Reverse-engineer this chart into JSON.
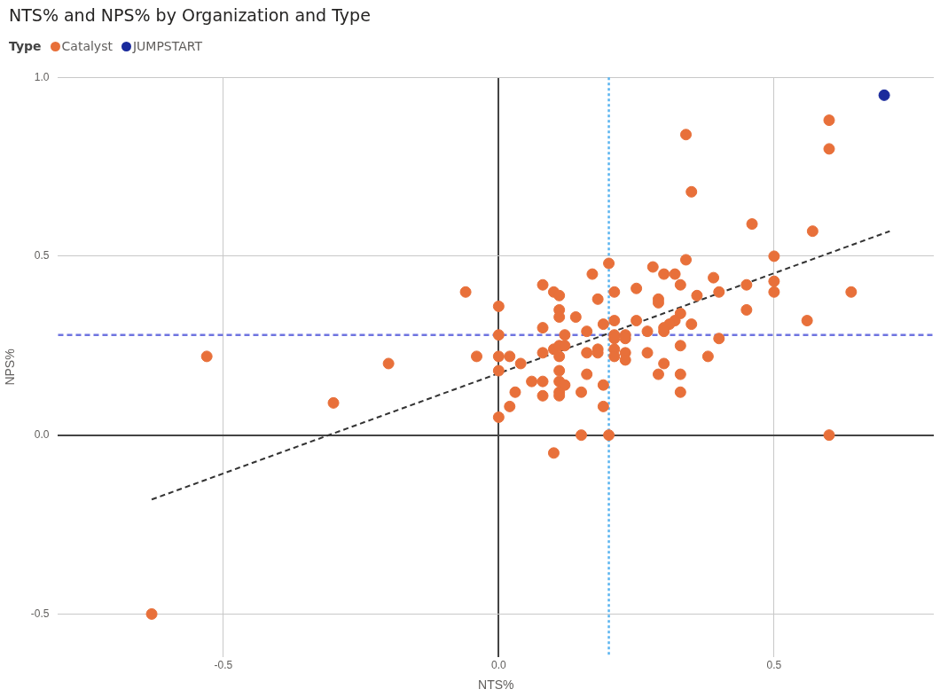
{
  "chart_data": {
    "type": "scatter",
    "title": "NTS% and NPS% by Organization and Type",
    "xlabel": "NTS%",
    "ylabel": "NPS%",
    "legend_title": "Type",
    "legend": "top left",
    "grid": true,
    "marker": "circle",
    "xlim": [
      -0.8,
      0.79
    ],
    "ylim": [
      -0.62,
      1.0
    ],
    "xticks": [
      {
        "value": -0.5,
        "label": "-0.5"
      },
      {
        "value": 0,
        "label": "0.0"
      },
      {
        "value": 0.5,
        "label": "0.5"
      }
    ],
    "yticks": [
      -0.5,
      {
        "value": 0,
        "label": "0.0"
      },
      0.5,
      {
        "value": 1,
        "label": "1.0"
      }
    ],
    "series": [
      {
        "name": "Catalyst",
        "color": "#e8703a",
        "x": [
          -0.63,
          -0.53,
          -0.3,
          -0.2,
          -0.06,
          -0.04,
          0.0,
          0.0,
          0.0,
          0.02,
          0.0,
          0.04,
          0.06,
          0.08,
          0.03,
          0.08,
          0.02,
          0.0,
          0.1,
          0.08,
          0.1,
          0.11,
          0.11,
          0.11,
          0.14,
          0.08,
          0.08,
          0.1,
          0.11,
          0.12,
          0.16,
          0.12,
          0.11,
          0.16,
          0.11,
          0.16,
          0.11,
          0.12,
          0.11,
          0.11,
          0.15,
          0.17,
          0.2,
          0.28,
          0.3,
          0.32,
          0.34,
          0.39,
          0.33,
          0.36,
          0.4,
          0.21,
          0.25,
          0.18,
          0.29,
          0.29,
          0.33,
          0.19,
          0.21,
          0.25,
          0.32,
          0.31,
          0.35,
          0.3,
          0.21,
          0.23,
          0.27,
          0.3,
          0.21,
          0.23,
          0.4,
          0.18,
          0.21,
          0.23,
          0.27,
          0.33,
          0.18,
          0.21,
          0.23,
          0.38,
          0.3,
          0.29,
          0.33,
          0.19,
          0.33,
          0.19,
          0.15,
          0.2,
          0.34,
          0.35,
          0.46,
          0.6,
          0.6,
          0.57,
          0.5,
          0.5,
          0.5,
          0.45,
          0.45,
          0.64,
          0.56,
          0.6
        ],
        "values": [
          -0.5,
          0.22,
          0.09,
          0.2,
          0.4,
          0.22,
          0.36,
          0.28,
          0.22,
          0.22,
          0.18,
          0.2,
          0.15,
          0.15,
          0.12,
          0.11,
          0.08,
          0.05,
          -0.05,
          0.42,
          0.4,
          0.39,
          0.35,
          0.33,
          0.33,
          0.3,
          0.23,
          0.24,
          0.25,
          0.28,
          0.29,
          0.25,
          0.22,
          0.23,
          0.18,
          0.17,
          0.15,
          0.14,
          0.12,
          0.11,
          0.12,
          0.45,
          0.48,
          0.47,
          0.45,
          0.45,
          0.49,
          0.44,
          0.42,
          0.39,
          0.4,
          0.4,
          0.41,
          0.38,
          0.38,
          0.37,
          0.34,
          0.31,
          0.32,
          0.32,
          0.32,
          0.31,
          0.31,
          0.3,
          0.28,
          0.28,
          0.29,
          0.29,
          0.27,
          0.27,
          0.27,
          0.24,
          0.24,
          0.23,
          0.23,
          0.25,
          0.23,
          0.22,
          0.21,
          0.22,
          0.2,
          0.17,
          0.17,
          0.14,
          0.12,
          0.08,
          0.0,
          0.0,
          0.84,
          0.68,
          0.59,
          0.88,
          0.8,
          0.57,
          0.5,
          0.43,
          0.4,
          0.42,
          0.35,
          0.4,
          0.32,
          0.0
        ]
      },
      {
        "name": "JUMPSTART",
        "color": "#1a2a9c",
        "x": [
          0.7
        ],
        "values": [
          0.95
        ]
      },
      {
        "type": "line",
        "color": "#333333",
        "line_style": "dashed",
        "marker": "none",
        "x": [
          -0.63,
          0.71
        ],
        "values": [
          -0.18,
          0.57
        ]
      }
    ],
    "ref_lines": [
      {
        "axis": "x",
        "value": 0.2,
        "color": "#5ab4f0",
        "line_style": "dotted"
      },
      {
        "axis": "y",
        "value": 0.28,
        "color": "#6f74e0",
        "line_style": "dashed"
      }
    ]
  }
}
